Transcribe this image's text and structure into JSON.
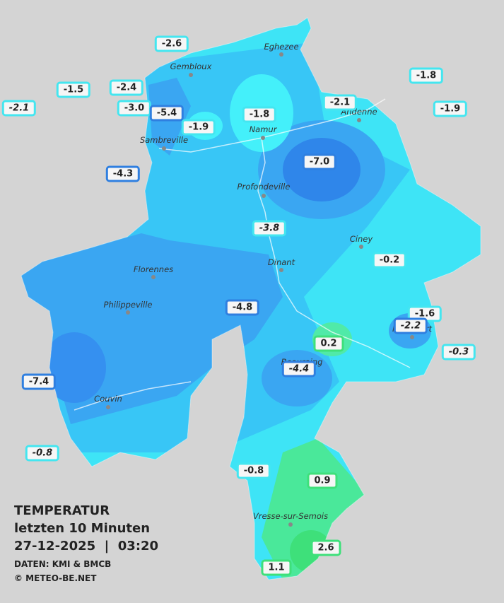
{
  "title": {
    "line1": "TEMPERATUR",
    "line2": "letzten 10 Minuten",
    "line3": "27-12-2025  |  03:20",
    "source": "DATEN: KMI & BMCB",
    "copyright": "© METEO-BE.NET"
  },
  "places": [
    "Eghezee",
    "Gembloux",
    "Andenne",
    "Namur",
    "Sambreville",
    "Profondeville",
    "Ciney",
    "Dinant",
    "Florennes",
    "Philippeville",
    "Rochefort",
    "Beauraing",
    "Couvin",
    "Vresse-sur-Semois"
  ],
  "stations": [
    {
      "label": "-2.6",
      "color": "#44e6f0",
      "italic": false
    },
    {
      "label": "-1.5",
      "color": "#44e6f0",
      "italic": false
    },
    {
      "label": "-2.1",
      "color": "#44e6f0",
      "italic": true
    },
    {
      "label": "-2.4",
      "color": "#44e6f0",
      "italic": false
    },
    {
      "label": "-3.0",
      "color": "#44e6f0",
      "italic": false
    },
    {
      "label": "-5.4",
      "color": "#2f7fe0",
      "italic": false
    },
    {
      "label": "-1.9",
      "color": "#44e6f0",
      "italic": false
    },
    {
      "label": "-1.8",
      "color": "#44e6f0",
      "italic": false
    },
    {
      "label": "-2.1",
      "color": "#44e6f0",
      "italic": false
    },
    {
      "label": "-1.8",
      "color": "#44e6f0",
      "italic": false
    },
    {
      "label": "-1.9",
      "color": "#44e6f0",
      "italic": false
    },
    {
      "label": "-7.0",
      "color": "#2f7fe0",
      "italic": false
    },
    {
      "label": "-4.3",
      "color": "#2f7fe0",
      "italic": false
    },
    {
      "label": "-3.8",
      "color": "#44e6f0",
      "italic": true
    },
    {
      "label": "-0.2",
      "color": "#44e6f0",
      "italic": false
    },
    {
      "label": "-4.8",
      "color": "#2f7fe0",
      "italic": false
    },
    {
      "label": "-1.6",
      "color": "#44e6f0",
      "italic": false
    },
    {
      "label": "-2.2",
      "color": "#2f7fe0",
      "italic": true
    },
    {
      "label": "-0.3",
      "color": "#44e6f0",
      "italic": true
    },
    {
      "label": "0.2",
      "color": "#3ee07a",
      "italic": false
    },
    {
      "label": "-4.4",
      "color": "#2f7fe0",
      "italic": true
    },
    {
      "label": "-7.4",
      "color": "#2f7fe0",
      "italic": false
    },
    {
      "label": "-0.8",
      "color": "#44e6f0",
      "italic": true
    },
    {
      "label": "-0.8",
      "color": "#44e6f0",
      "italic": false
    },
    {
      "label": "0.9",
      "color": "#3ee07a",
      "italic": false
    },
    {
      "label": "2.6",
      "color": "#3ee07a",
      "italic": false
    },
    {
      "label": "1.1",
      "color": "#3ee07a",
      "italic": false
    }
  ]
}
